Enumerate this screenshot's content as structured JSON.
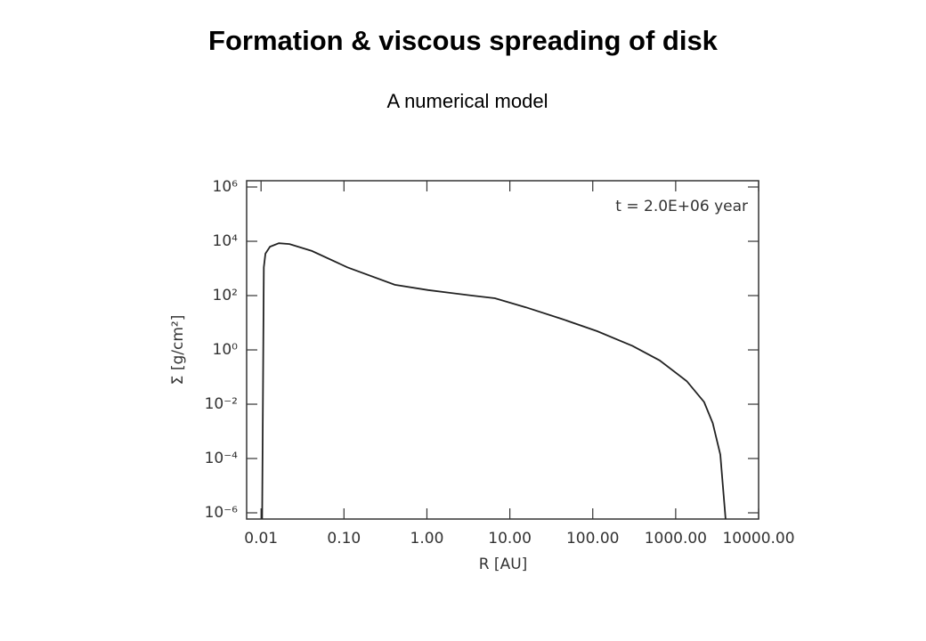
{
  "chart_data": {
    "type": "line",
    "title": "Formation & viscous spreading of disk",
    "subtitle": "A numerical model",
    "annotation": "t = 2.0E+06 year",
    "x_label": "R [AU]",
    "y_label": "Σ [g/cm²]",
    "x_log": true,
    "y_log": true,
    "color": "#222222",
    "x": [
      0.0103,
      0.0108,
      0.0113,
      0.0128,
      0.0164,
      0.022,
      0.041,
      0.11,
      0.41,
      1.03,
      3.5,
      6.6,
      15.6,
      42,
      113,
      302,
      640,
      1360,
      2200,
      2800,
      3450,
      4000
    ],
    "values": [
      6e-07,
      1100,
      3500,
      6300,
      8500,
      7900,
      4400,
      1100,
      250,
      160,
      100,
      80,
      37,
      14,
      4.9,
      1.4,
      0.41,
      0.071,
      0.012,
      0.002,
      0.00014,
      6e-07
    ],
    "xlim": [
      0.0067,
      10000
    ],
    "ylim": [
      5.9e-07,
      1700000.0
    ],
    "xticks": [
      {
        "value": 0.01,
        "label": "0.01"
      },
      {
        "value": 0.1,
        "label": "0.10"
      },
      {
        "value": 1,
        "label": "1.00"
      },
      {
        "value": 10,
        "label": "10.00"
      },
      {
        "value": 100,
        "label": "100.00"
      },
      {
        "value": 1000,
        "label": "1000.00"
      },
      {
        "value": 10000,
        "label": "10000.00"
      }
    ],
    "yticks": [
      {
        "value": 1e-06,
        "label": "10⁻⁶"
      },
      {
        "value": 0.0001,
        "label": "10⁻⁴"
      },
      {
        "value": 0.01,
        "label": "10⁻²"
      },
      {
        "value": 1,
        "label": "10⁰"
      },
      {
        "value": 100,
        "label": "10²"
      },
      {
        "value": 10000,
        "label": "10⁴"
      },
      {
        "value": 1000000,
        "label": "10⁶"
      }
    ]
  }
}
